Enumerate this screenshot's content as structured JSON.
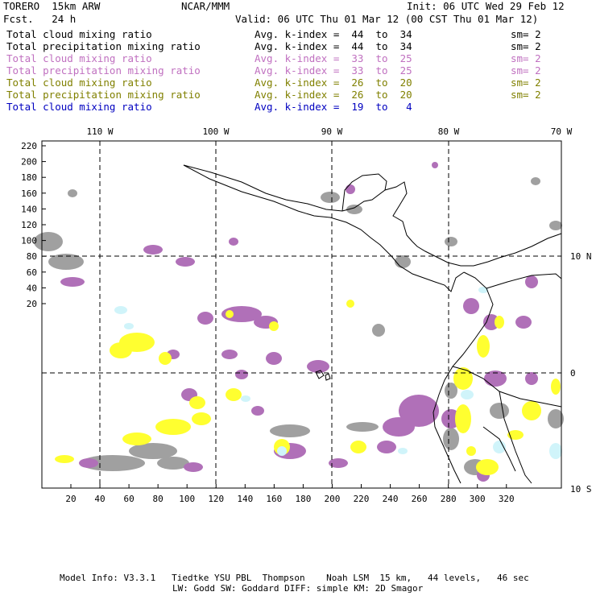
{
  "header": {
    "model": "TORERO  15km ARW",
    "org": "NCAR/MMM",
    "init": "Init: 06 UTC Wed 29 Feb 12",
    "fcst": "Fcst.   24 h",
    "valid": "Valid: 06 UTC Thu 01 Mar 12 (00 CST Thu 01 Mar 12)"
  },
  "legend": [
    {
      "field": "Total cloud mixing ratio",
      "k": "Avg. k-index =  44  to  34",
      "sm": "sm= 2",
      "color": "#000000"
    },
    {
      "field": "Total precipitation mixing ratio",
      "k": "Avg. k-index =  44  to  34",
      "sm": "sm= 2",
      "color": "#000000"
    },
    {
      "field": "Total cloud mixing ratio",
      "k": "Avg. k-index =  33  to  25",
      "sm": "sm= 2",
      "color": "#c070c0"
    },
    {
      "field": "Total precipitation mixing ratio",
      "k": "Avg. k-index =  33  to  25",
      "sm": "sm= 2",
      "color": "#c070c0"
    },
    {
      "field": "Total cloud mixing ratio",
      "k": "Avg. k-index =  26  to  20",
      "sm": "sm= 2",
      "color": "#808000"
    },
    {
      "field": "Total precipitation mixing ratio",
      "k": "Avg. k-index =  26  to  20",
      "sm": "sm= 2",
      "color": "#808000"
    },
    {
      "field": "Total cloud mixing ratio",
      "k": "Avg. k-index =  19  to   4",
      "sm": "",
      "color": "#0000c0"
    }
  ],
  "top_lon_labels": [
    "110 W",
    "100 W",
    "90 W",
    "80 W",
    "70 W"
  ],
  "right_lat_labels": [
    "10 N",
    "0",
    "10 S"
  ],
  "y_ticks": [
    "220",
    "200",
    "180",
    "160",
    "140",
    "120",
    "100",
    "80",
    "60",
    "40",
    "20"
  ],
  "x_ticks": [
    "20",
    "40",
    "60",
    "80",
    "100",
    "120",
    "140",
    "160",
    "180",
    "200",
    "220",
    "240",
    "260",
    "280",
    "300",
    "320"
  ],
  "footer": {
    "line1": "Model Info: V3.3.1   Tiedtke YSU PBL  Thompson    Noah LSM  15 km,   44 levels,   46 sec",
    "line2": "LW: Godd SW: Goddard DIFF: simple KM: 2D Smagor"
  },
  "colors": {
    "gray": "#a0a0a0",
    "purple": "#b070b8",
    "yellow": "#ffff30",
    "cyan": "#d0f4fa",
    "grid": "#000000"
  }
}
